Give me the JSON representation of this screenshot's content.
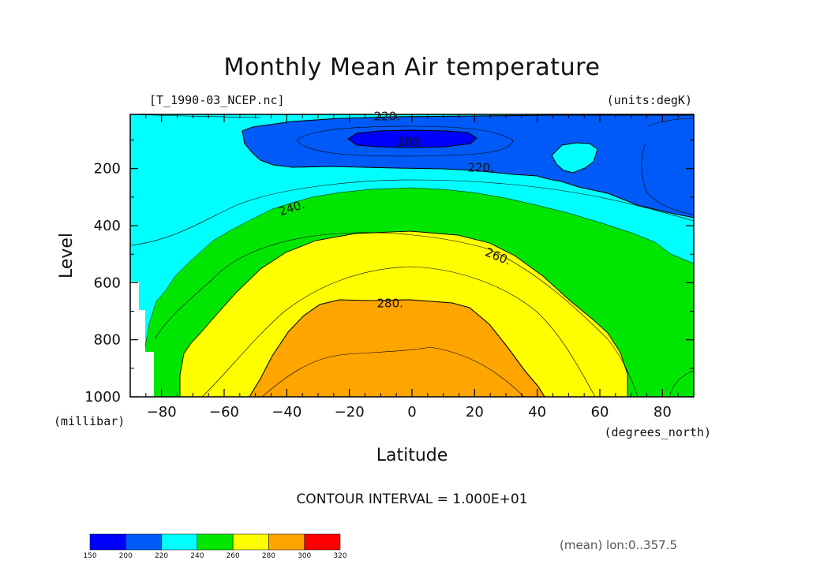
{
  "chart_data": {
    "type": "contour",
    "title": "Monthly Mean Air temperature",
    "source_label": "[T_1990-03_NCEP.nc]",
    "units_label": "(units:degK)",
    "xlabel": "Latitude",
    "ylabel": "Level",
    "x_units": "(degrees_north)",
    "y_units": "(millibar)",
    "xlim": [
      -90,
      90
    ],
    "ylim": [
      1000,
      10
    ],
    "xticks": [
      -80,
      -60,
      -40,
      -20,
      0,
      20,
      40,
      60,
      80
    ],
    "yticks": [
      200,
      400,
      600,
      800,
      1000
    ],
    "contour_interval_label": "CONTOUR INTERVAL = 1.000E+01",
    "contour_labels": [
      {
        "text": "220.",
        "x": -8,
        "y": 20
      },
      {
        "text": "200.",
        "x": -0.5,
        "y": 110
      },
      {
        "text": "220.",
        "x": 22,
        "y": 200
      },
      {
        "text": "240.",
        "x": -38,
        "y": 340
      },
      {
        "text": "260.",
        "x": 27,
        "y": 510
      },
      {
        "text": "280.",
        "x": -7,
        "y": 675
      }
    ],
    "colorbar": {
      "levels": [
        150,
        200,
        220,
        240,
        260,
        280,
        300,
        320
      ],
      "colors": [
        "#0000ff",
        "#005af7",
        "#00ffff",
        "#00e600",
        "#ffff00",
        "#ffa500",
        "#ff0000"
      ],
      "labels": [
        "150",
        "200",
        "220",
        "240",
        "260",
        "280",
        "300",
        "320"
      ]
    },
    "annotation": "(mean) lon:0..357.5",
    "grid": false
  }
}
